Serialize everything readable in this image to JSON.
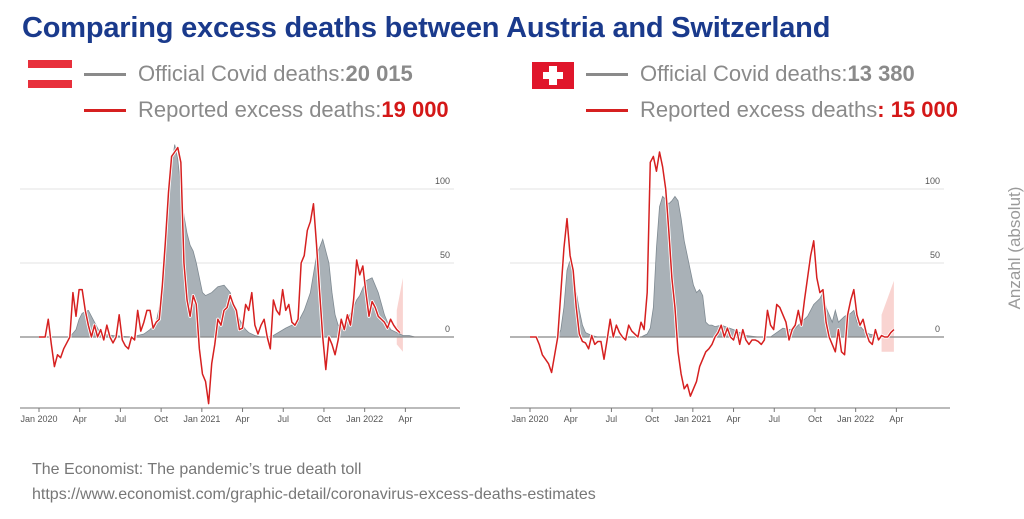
{
  "title": "Comparing excess deaths between Austria and Switzerland",
  "legends": [
    {
      "country": "Austria",
      "flag_icon": "austria-flag-icon",
      "official_label": "Official Covid deaths: ",
      "official_value": "20 015",
      "excess_label": "Reported excess deaths: ",
      "excess_value": "19 000"
    },
    {
      "country": "Switzerland",
      "flag_icon": "switzerland-flag-icon",
      "official_label": "Official Covid deaths: ",
      "official_value": "13 380",
      "excess_label": "Reported excess deaths",
      "excess_value": ": 15 000"
    }
  ],
  "colors": {
    "title": "#1a3a8c",
    "official_area": "#a9b1b7",
    "official_stroke": "#7f8a92",
    "excess_line": "#d62020",
    "uncertainty_band": "#f6c2bd",
    "gridline": "#e3e3e3",
    "zero_line": "#888888"
  },
  "y_axis_title": "Anzahl (absolut)",
  "footer": {
    "line1": "The Economist: The pandemic’s true death toll",
    "line2": "https://www.economist.com/graphic-detail/coronavirus-excess-deaths-estimates"
  },
  "chart_data": [
    {
      "type": "area",
      "title": "Austria",
      "xlabel": "",
      "ylabel": "Anzahl (absolut)",
      "x_ticks": [
        "Jan 2020",
        "Apr",
        "Jul",
        "Oct",
        "Jan 2021",
        "Apr",
        "Jul",
        "Oct",
        "Jan 2022",
        "Apr"
      ],
      "y_ticks": [
        0,
        50,
        100
      ],
      "ylim": [
        -50,
        135
      ],
      "x_unit": "weeks since Jan 2020",
      "xlim": [
        0,
        126
      ],
      "grid": true,
      "series": [
        {
          "name": "Official Covid deaths",
          "style": "area",
          "x": [
            0,
            10,
            12,
            13,
            14,
            16,
            18,
            20,
            24,
            30,
            34,
            36,
            38,
            39,
            40,
            41,
            42,
            43,
            44,
            45,
            46,
            47,
            48,
            49,
            50,
            51,
            52,
            53,
            54,
            56,
            58,
            60,
            62,
            63,
            64,
            65,
            66,
            67,
            68,
            70,
            72,
            74,
            76,
            80,
            84,
            86,
            88,
            90,
            92,
            94,
            95,
            96,
            97,
            98,
            99,
            100,
            101,
            102,
            103,
            104,
            106,
            108,
            110,
            112,
            114,
            116,
            117,
            118,
            120,
            122,
            124,
            126
          ],
          "values": [
            0,
            0,
            5,
            12,
            16,
            18,
            10,
            2,
            1,
            0,
            2,
            5,
            10,
            20,
            35,
            60,
            90,
            115,
            130,
            120,
            100,
            82,
            70,
            62,
            58,
            50,
            40,
            30,
            28,
            30,
            34,
            35,
            30,
            24,
            18,
            12,
            8,
            5,
            3,
            1,
            0,
            0,
            1,
            6,
            10,
            18,
            30,
            55,
            66,
            50,
            30,
            15,
            8,
            7,
            6,
            10,
            16,
            20,
            25,
            28,
            38,
            40,
            30,
            15,
            5,
            3,
            2,
            1,
            1,
            0,
            0,
            0
          ]
        },
        {
          "name": "Reported excess deaths",
          "style": "line",
          "x": [
            0,
            2,
            3,
            4,
            5,
            6,
            7,
            8,
            9,
            10,
            11,
            12,
            13,
            14,
            15,
            16,
            17,
            18,
            19,
            20,
            21,
            22,
            23,
            24,
            25,
            26,
            27,
            28,
            29,
            30,
            31,
            32,
            33,
            34,
            35,
            36,
            37,
            38,
            39,
            40,
            41,
            42,
            43,
            44,
            45,
            46,
            47,
            48,
            49,
            50,
            51,
            52,
            53,
            54,
            55,
            56,
            57,
            58,
            59,
            60,
            61,
            62,
            63,
            64,
            65,
            66,
            67,
            68,
            69,
            70,
            71,
            72,
            73,
            74,
            75,
            76,
            77,
            78,
            79,
            80,
            81,
            82,
            83,
            84,
            85,
            86,
            87,
            88,
            89,
            90,
            91,
            92,
            93,
            94,
            95,
            96,
            97,
            98,
            99,
            100,
            101,
            102,
            103,
            104,
            105,
            106,
            107,
            108,
            109,
            110,
            111,
            112,
            113,
            114,
            115,
            116,
            117
          ],
          "values": [
            0,
            0,
            12,
            -5,
            -20,
            -12,
            -14,
            -8,
            -4,
            0,
            30,
            14,
            32,
            32,
            18,
            8,
            0,
            8,
            0,
            5,
            -2,
            8,
            0,
            -4,
            0,
            15,
            -2,
            -6,
            -8,
            0,
            -2,
            18,
            4,
            10,
            18,
            18,
            6,
            10,
            12,
            35,
            65,
            98,
            122,
            125,
            128,
            118,
            50,
            25,
            14,
            28,
            22,
            -8,
            -25,
            -30,
            -45,
            -18,
            -5,
            12,
            8,
            18,
            20,
            28,
            22,
            18,
            5,
            6,
            22,
            18,
            30,
            8,
            2,
            8,
            12,
            0,
            -8,
            25,
            18,
            15,
            32,
            18,
            22,
            10,
            8,
            12,
            50,
            55,
            72,
            78,
            90,
            62,
            30,
            0,
            -22,
            0,
            -5,
            -12,
            -2,
            12,
            5,
            15,
            8,
            25,
            52,
            42,
            48,
            30,
            14,
            24,
            20,
            14,
            12,
            10,
            6,
            12,
            8,
            5,
            3
          ]
        },
        {
          "name": "Estimate uncertainty",
          "style": "band",
          "x": [
            116,
            118
          ],
          "lower": [
            -5,
            -10
          ],
          "upper": [
            18,
            40
          ]
        }
      ]
    },
    {
      "type": "area",
      "title": "Switzerland",
      "xlabel": "",
      "ylabel": "Anzahl (absolut)",
      "x_ticks": [
        "Jan 2020",
        "Apr",
        "Jul",
        "Oct",
        "Jan 2021",
        "Apr",
        "Jul",
        "Oct",
        "Jan 2022",
        "Apr"
      ],
      "y_ticks": [
        0,
        50,
        100
      ],
      "ylim": [
        -50,
        135
      ],
      "x_unit": "weeks since Jan 2020",
      "xlim": [
        0,
        126
      ],
      "grid": true,
      "series": [
        {
          "name": "Official Covid deaths",
          "style": "area",
          "x": [
            0,
            9,
            10,
            11,
            12,
            13,
            14,
            15,
            16,
            17,
            18,
            20,
            22,
            30,
            36,
            38,
            39,
            40,
            41,
            42,
            43,
            44,
            45,
            46,
            47,
            48,
            49,
            50,
            51,
            52,
            53,
            54,
            55,
            56,
            57,
            58,
            59,
            60,
            62,
            66,
            70,
            74,
            78,
            80,
            82,
            84,
            86,
            88,
            90,
            92,
            94,
            95,
            96,
            97,
            98,
            99,
            100,
            102,
            104,
            105,
            106,
            108,
            110,
            112,
            114,
            116,
            118
          ],
          "values": [
            0,
            0,
            5,
            20,
            45,
            52,
            40,
            30,
            18,
            8,
            3,
            1,
            0,
            0,
            0,
            2,
            6,
            20,
            60,
            88,
            95,
            93,
            90,
            92,
            95,
            92,
            80,
            65,
            55,
            45,
            35,
            30,
            32,
            28,
            10,
            8,
            8,
            7,
            8,
            5,
            1,
            0,
            0,
            3,
            6,
            5,
            6,
            10,
            14,
            22,
            26,
            30,
            20,
            15,
            10,
            18,
            10,
            14,
            16,
            18,
            10,
            5,
            2,
            1,
            0,
            0,
            0
          ]
        },
        {
          "name": "Reported excess deaths",
          "style": "line",
          "x": [
            0,
            2,
            3,
            4,
            5,
            6,
            7,
            8,
            9,
            10,
            11,
            12,
            13,
            14,
            15,
            16,
            17,
            18,
            19,
            20,
            21,
            22,
            23,
            24,
            25,
            26,
            27,
            28,
            29,
            30,
            31,
            32,
            33,
            34,
            35,
            36,
            37,
            38,
            39,
            40,
            41,
            42,
            43,
            44,
            45,
            46,
            47,
            48,
            49,
            50,
            51,
            52,
            53,
            54,
            55,
            56,
            57,
            58,
            59,
            60,
            61,
            62,
            63,
            64,
            65,
            66,
            67,
            68,
            69,
            70,
            71,
            72,
            73,
            74,
            75,
            76,
            77,
            78,
            79,
            80,
            81,
            82,
            83,
            84,
            85,
            86,
            87,
            88,
            89,
            90,
            91,
            92,
            93,
            94,
            95,
            96,
            97,
            98,
            99,
            100,
            101,
            102,
            103,
            104,
            105,
            106,
            107,
            108,
            109,
            110,
            111,
            112,
            113,
            114,
            115,
            116,
            117,
            118
          ],
          "values": [
            0,
            0,
            -5,
            -12,
            -15,
            -18,
            -24,
            -12,
            0,
            30,
            60,
            80,
            55,
            45,
            20,
            2,
            -3,
            -4,
            -8,
            1,
            -5,
            -3,
            -3,
            -15,
            -2,
            12,
            0,
            8,
            3,
            0,
            -2,
            8,
            4,
            2,
            0,
            10,
            5,
            30,
            118,
            122,
            112,
            125,
            115,
            100,
            72,
            40,
            20,
            -10,
            -25,
            -35,
            -32,
            -40,
            -35,
            -30,
            -20,
            -15,
            -10,
            -8,
            -5,
            0,
            3,
            8,
            0,
            6,
            0,
            -2,
            5,
            -5,
            5,
            -2,
            -5,
            -2,
            -2,
            -3,
            -5,
            -2,
            18,
            8,
            5,
            22,
            20,
            15,
            10,
            -2,
            5,
            8,
            18,
            8,
            25,
            40,
            55,
            65,
            40,
            30,
            32,
            10,
            0,
            -5,
            -10,
            5,
            -10,
            -12,
            15,
            25,
            32,
            15,
            8,
            12,
            3,
            -3,
            -5,
            5,
            -2,
            1,
            0,
            0,
            3,
            5
          ]
        },
        {
          "name": "Estimate uncertainty",
          "style": "band",
          "x": [
            114,
            118
          ],
          "lower": [
            -10,
            -10
          ],
          "upper": [
            15,
            38
          ]
        }
      ]
    }
  ]
}
